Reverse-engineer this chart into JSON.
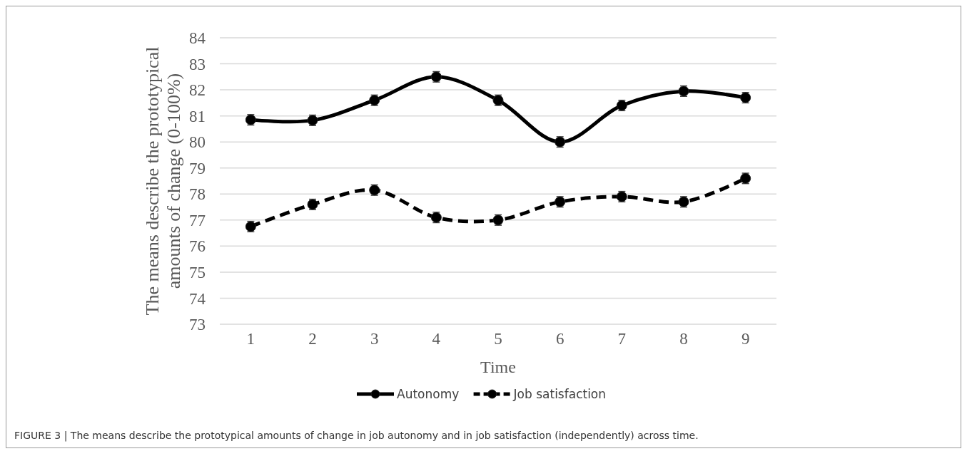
{
  "chart_data": {
    "type": "line",
    "xlabel": "Time",
    "ylabel": "The means describe the prototypical amounts of change (0-100%)",
    "categories": [
      "1",
      "2",
      "3",
      "4",
      "5",
      "6",
      "7",
      "8",
      "9"
    ],
    "series": [
      {
        "name": "Autonomy",
        "color": "#000000",
        "line_style": "solid",
        "values": [
          80.85,
          80.83,
          81.6,
          82.5,
          81.6,
          80.0,
          81.4,
          81.95,
          81.7
        ],
        "errors": [
          0.2,
          0.2,
          0.2,
          0.2,
          0.2,
          0.2,
          0.2,
          0.2,
          0.2
        ]
      },
      {
        "name": "Job satisfaction",
        "color": "#000000",
        "line_style": "dashed",
        "values": [
          76.75,
          77.6,
          78.15,
          77.1,
          77.0,
          77.7,
          77.9,
          77.7,
          78.6
        ],
        "errors": [
          0.2,
          0.2,
          0.2,
          0.2,
          0.2,
          0.2,
          0.2,
          0.2,
          0.2
        ]
      }
    ],
    "ylim": [
      73,
      84
    ],
    "yticks": [
      73,
      74,
      75,
      76,
      77,
      78,
      79,
      80,
      81,
      82,
      83,
      84
    ],
    "grid": "y",
    "legend": "bottom",
    "marker": "circle",
    "annotations": [
      "FIGURE 3 | The means describe the prototypical amounts of change in job autonomy and in job satisfaction (independently) across time."
    ]
  }
}
